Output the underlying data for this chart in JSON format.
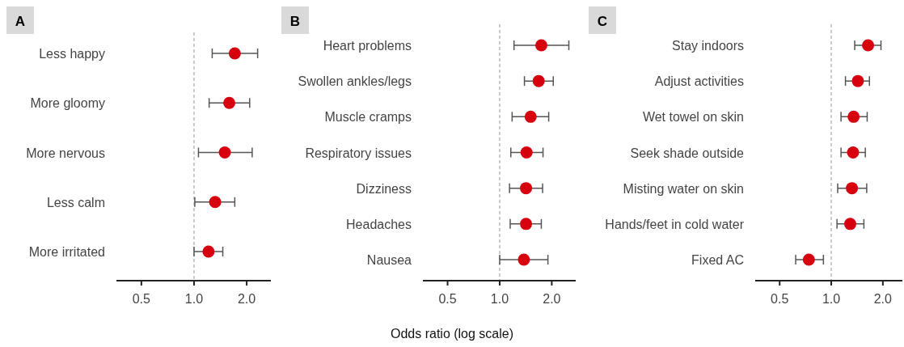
{
  "chart_data": [
    {
      "type": "scatter",
      "title": "A",
      "orientation": "horizontal",
      "log": "x",
      "marker": "circle",
      "grid": false,
      "categories": [
        "Less happy",
        "More gloomy",
        "More nervous",
        "Less calm",
        "More irritated"
      ],
      "color": "#d7000f",
      "values": [
        1.71,
        1.59,
        1.5,
        1.32,
        1.21
      ],
      "errors": [
        [
          1.27,
          2.31
        ],
        [
          1.22,
          2.08
        ],
        [
          1.06,
          2.15
        ],
        [
          1.01,
          1.71
        ],
        [
          1.0,
          1.46
        ]
      ],
      "xlim": [
        0.36,
        2.75
      ],
      "xticks": [
        {
          "value": 0.5,
          "label": "0.5"
        },
        {
          "value": 1,
          "label": "1.0"
        },
        {
          "value": 2,
          "label": "2.0"
        }
      ],
      "ref_lines": [
        {
          "axis": "x",
          "value": 1,
          "color": "#aaaaaa",
          "line_style": "dashed"
        }
      ]
    },
    {
      "type": "scatter",
      "title": "B",
      "orientation": "horizontal",
      "log": "x",
      "marker": "circle",
      "grid": false,
      "xlabel": "Odds ratio (log scale)",
      "categories": [
        "Heart problems",
        "Swollen ankles/legs",
        "Muscle cramps",
        "Respiratory issues",
        "Dizziness",
        "Headaches",
        "Nausea"
      ],
      "color": "#d7000f",
      "values": [
        1.74,
        1.68,
        1.51,
        1.43,
        1.42,
        1.42,
        1.38
      ],
      "errors": [
        [
          1.21,
          2.51
        ],
        [
          1.39,
          2.04
        ],
        [
          1.18,
          1.92
        ],
        [
          1.16,
          1.78
        ],
        [
          1.14,
          1.77
        ],
        [
          1.15,
          1.74
        ],
        [
          1.0,
          1.9
        ]
      ],
      "xlim": [
        0.36,
        2.75
      ],
      "xticks": [
        {
          "value": 0.5,
          "label": "0.5"
        },
        {
          "value": 1,
          "label": "1.0"
        },
        {
          "value": 2,
          "label": "2.0"
        }
      ],
      "ref_lines": [
        {
          "axis": "x",
          "value": 1,
          "color": "#aaaaaa",
          "line_style": "dashed"
        }
      ]
    },
    {
      "type": "scatter",
      "title": "C",
      "orientation": "horizontal",
      "log": "x",
      "marker": "circle",
      "grid": false,
      "categories": [
        "Stay indoors",
        "Adjust activities",
        "Wet towel on skin",
        "Seek shade outside",
        "Misting water on skin",
        "Hands/feet in cold water",
        "Fixed AC"
      ],
      "color": "#d7000f",
      "values": [
        1.64,
        1.43,
        1.35,
        1.34,
        1.32,
        1.29,
        0.74
      ],
      "errors": [
        [
          1.37,
          1.95
        ],
        [
          1.21,
          1.67
        ],
        [
          1.14,
          1.62
        ],
        [
          1.14,
          1.58
        ],
        [
          1.09,
          1.61
        ],
        [
          1.08,
          1.55
        ],
        [
          0.62,
          0.9
        ]
      ],
      "xlim": [
        0.36,
        2.6
      ],
      "xticks": [
        {
          "value": 0.5,
          "label": "0.5"
        },
        {
          "value": 1,
          "label": "1.0"
        },
        {
          "value": 2,
          "label": "2.0"
        }
      ],
      "ref_lines": [
        {
          "axis": "x",
          "value": 1,
          "color": "#aaaaaa",
          "line_style": "dashed"
        }
      ]
    }
  ]
}
